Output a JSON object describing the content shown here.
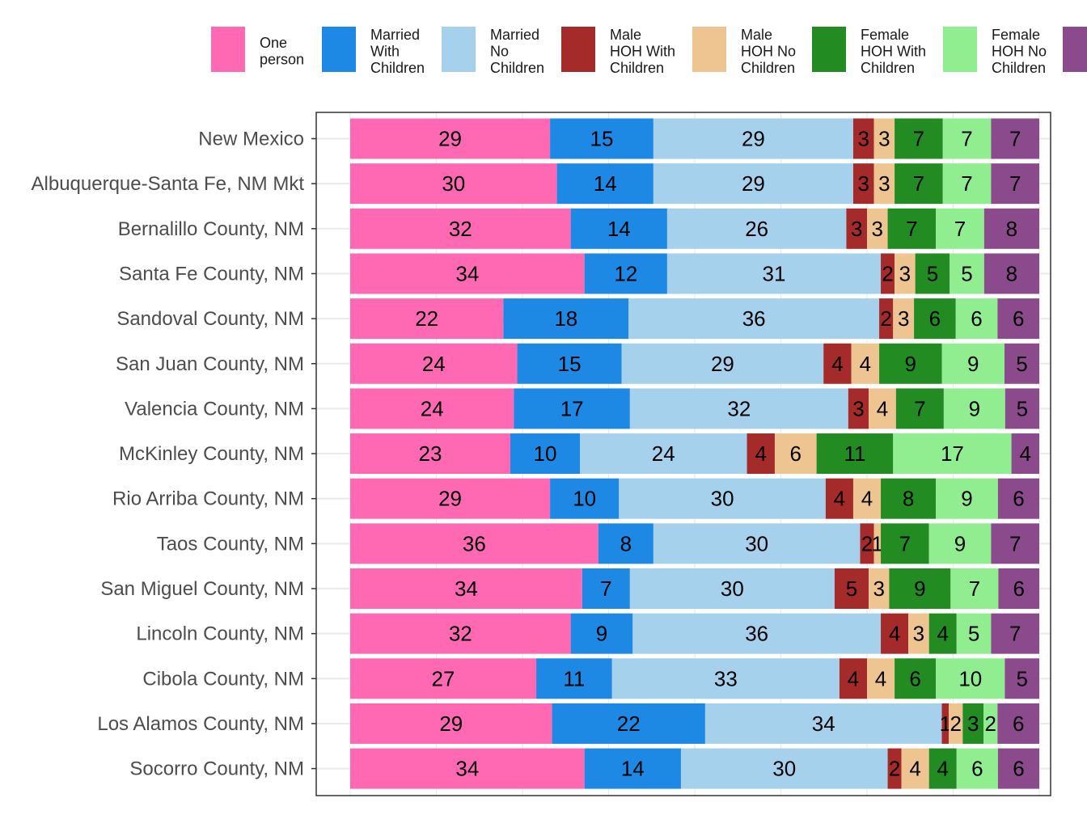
{
  "chart_data": {
    "type": "bar",
    "orientation": "horizontal",
    "stacked": true,
    "normalized": true,
    "title": "",
    "xlabel": "",
    "ylabel": "",
    "grid": true,
    "legend_position": "top",
    "categories": [
      "New Mexico",
      "Albuquerque-Santa Fe, NM Mkt",
      "Bernalillo County, NM",
      "Santa Fe County, NM",
      "Sandoval County, NM",
      "San Juan County, NM",
      "Valencia County, NM",
      "McKinley County, NM",
      "Rio Arriba County, NM",
      "Taos County, NM",
      "San Miguel County, NM",
      "Lincoln County, NM",
      "Cibola County, NM",
      "Los Alamos County, NM",
      "Socorro County, NM"
    ],
    "series": [
      {
        "name": "One person",
        "legend_lines": [
          "One",
          "person"
        ],
        "color": "#FF69B4",
        "values": [
          29,
          30,
          32,
          34,
          22,
          24,
          24,
          23,
          29,
          36,
          34,
          32,
          27,
          29,
          34
        ]
      },
      {
        "name": "Married With Children",
        "legend_lines": [
          "Married",
          "With",
          "Children"
        ],
        "color": "#1E88E5",
        "values": [
          15,
          14,
          14,
          12,
          18,
          15,
          17,
          10,
          10,
          8,
          7,
          9,
          11,
          22,
          14
        ]
      },
      {
        "name": "Married No Children",
        "legend_lines": [
          "Married",
          "No",
          "Children"
        ],
        "color": "#A6D1EC",
        "values": [
          29,
          29,
          26,
          31,
          36,
          29,
          32,
          24,
          30,
          30,
          30,
          36,
          33,
          34,
          30
        ]
      },
      {
        "name": "Male HOH With Children",
        "legend_lines": [
          "Male",
          "HOH With",
          "Children"
        ],
        "color": "#A52A2A",
        "values": [
          3,
          3,
          3,
          2,
          2,
          4,
          3,
          4,
          4,
          2,
          5,
          4,
          4,
          1,
          2
        ]
      },
      {
        "name": "Male HOH No Children",
        "legend_lines": [
          "Male",
          "HOH No",
          "Children"
        ],
        "color": "#EEC591",
        "values": [
          3,
          3,
          3,
          3,
          3,
          4,
          4,
          6,
          4,
          1,
          3,
          3,
          4,
          2,
          4
        ]
      },
      {
        "name": "Female HOH With Children",
        "legend_lines": [
          "Female",
          "HOH With",
          "Children"
        ],
        "color": "#228B22",
        "values": [
          7,
          7,
          7,
          5,
          6,
          9,
          7,
          11,
          8,
          7,
          9,
          4,
          6,
          3,
          4
        ]
      },
      {
        "name": "Female HOH No Children",
        "legend_lines": [
          "Female",
          "HOH No",
          "Children"
        ],
        "color": "#90EE90",
        "values": [
          7,
          7,
          7,
          5,
          6,
          9,
          9,
          17,
          9,
          9,
          7,
          5,
          10,
          2,
          6
        ]
      },
      {
        "name": "",
        "legend_lines": [],
        "color": "#8B4A8B",
        "values": [
          7,
          7,
          8,
          8,
          6,
          5,
          5,
          4,
          6,
          7,
          6,
          7,
          5,
          6,
          6
        ]
      }
    ]
  }
}
